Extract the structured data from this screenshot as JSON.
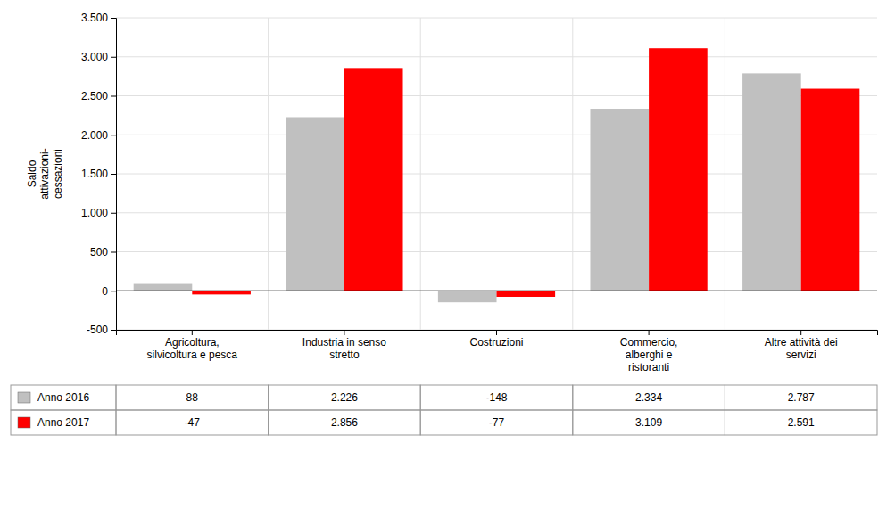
{
  "chart_data": {
    "type": "bar",
    "categories": [
      "Agricoltura,\nsilvicoltura e pesca",
      "Industria in senso\nstretto",
      "Costruzioni",
      "Commercio,\nalberghi e\nristoranti",
      "Altre attività dei\nservizi"
    ],
    "series": [
      {
        "name": "Anno 2016",
        "color": "#C0C0C0",
        "values": [
          88,
          2226,
          -148,
          2334,
          2787
        ],
        "value_labels": [
          "88",
          "2.226",
          "-148",
          "2.334",
          "2.787"
        ]
      },
      {
        "name": "Anno 2017",
        "color": "#FF0000",
        "values": [
          -47,
          2856,
          -77,
          3109,
          2591
        ],
        "value_labels": [
          "-47",
          "2.856",
          "-77",
          "3.109",
          "2.591"
        ]
      }
    ],
    "ylabel": "Saldo\nattivazioni-\ncessazioni",
    "ylim": [
      -500,
      3500
    ],
    "yticks": [
      -500,
      0,
      500,
      {
        "value": 1000,
        "label": "1.000"
      },
      {
        "value": 1500,
        "label": "1.500"
      },
      {
        "value": 2000,
        "label": "2.000"
      },
      {
        "value": 2500,
        "label": "2.500"
      },
      {
        "value": 3000,
        "label": "3.000"
      },
      {
        "value": 3500,
        "label": "3.500"
      }
    ],
    "grid": true
  }
}
